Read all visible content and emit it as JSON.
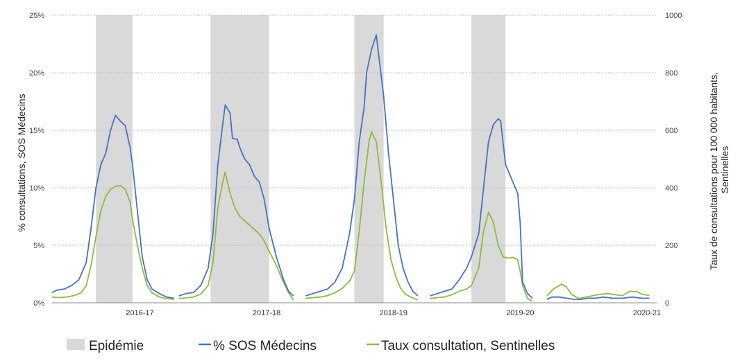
{
  "chart_data": {
    "type": "line",
    "ylabel_left": "% consultations, SOS Médecins",
    "ylabel_right": "Taux de consultations pour 100 000 habitants, Sentinelles",
    "y_left": {
      "ticks": [
        "0%",
        "5%",
        "10%",
        "15%",
        "20%",
        "25%"
      ],
      "range": [
        0,
        25
      ]
    },
    "y_right": {
      "ticks": [
        "0",
        "200",
        "400",
        "600",
        "800",
        "1000"
      ],
      "range": [
        0,
        1000
      ]
    },
    "x_range": [
      0,
      248
    ],
    "grid": true,
    "legend_position": "bottom",
    "seasons": [
      {
        "label": "2016-17",
        "x": 36
      },
      {
        "label": "2017-18",
        "x": 88
      },
      {
        "label": "2018-19",
        "x": 140
      },
      {
        "label": "2019-20",
        "x": 192
      },
      {
        "label": "2020-21",
        "x": 244
      }
    ],
    "epidemics": [
      [
        18,
        33
      ],
      [
        65,
        89
      ],
      [
        124,
        136
      ],
      [
        172,
        186
      ]
    ],
    "legend": {
      "epidemic": "Epidémie",
      "sos": "% SOS Médecins",
      "sentinelles": "Taux consultation, Sentinelles"
    },
    "colors": {
      "sos": "#4472c4",
      "sentinelles": "#8dbb3c",
      "epidemic": "#d9d9d9",
      "grid": "#bfbfbf"
    },
    "series": [
      {
        "name": "% SOS Médecins",
        "axis": "left",
        "segments": [
          [
            [
              0,
              0.9
            ],
            [
              2,
              1.1
            ],
            [
              5,
              1.2
            ],
            [
              8,
              1.5
            ],
            [
              11,
              2.0
            ],
            [
              14,
              3.5
            ],
            [
              16,
              6.5
            ],
            [
              18,
              10.0
            ],
            [
              20,
              12.0
            ],
            [
              22,
              13.0
            ],
            [
              24,
              15.0
            ],
            [
              26,
              16.3
            ],
            [
              28,
              15.8
            ],
            [
              30,
              15.4
            ],
            [
              32,
              13.5
            ],
            [
              33,
              12.0
            ],
            [
              35,
              8.0
            ],
            [
              37,
              4.0
            ],
            [
              39,
              2.0
            ],
            [
              41,
              1.2
            ],
            [
              44,
              0.8
            ],
            [
              47,
              0.5
            ],
            [
              50,
              0.4
            ]
          ],
          [
            [
              52,
              0.6
            ],
            [
              55,
              0.8
            ],
            [
              58,
              0.9
            ],
            [
              61,
              1.5
            ],
            [
              64,
              3.0
            ],
            [
              66,
              6.0
            ],
            [
              68,
              12.0
            ],
            [
              70,
              15.5
            ],
            [
              71,
              17.2
            ],
            [
              73,
              16.5
            ],
            [
              74,
              14.3
            ],
            [
              76,
              14.2
            ],
            [
              77,
              13.5
            ],
            [
              79,
              12.5
            ],
            [
              81,
              12.0
            ],
            [
              83,
              11.0
            ],
            [
              85,
              10.5
            ],
            [
              87,
              9.0
            ],
            [
              89,
              6.5
            ],
            [
              92,
              4.0
            ],
            [
              95,
              2.0
            ],
            [
              97,
              1.0
            ],
            [
              99,
              0.6
            ]
          ],
          [
            [
              104,
              0.6
            ],
            [
              107,
              0.8
            ],
            [
              110,
              1.0
            ],
            [
              113,
              1.2
            ],
            [
              116,
              1.8
            ],
            [
              119,
              3.0
            ],
            [
              122,
              6.0
            ],
            [
              124,
              9.0
            ],
            [
              126,
              14.0
            ],
            [
              128,
              17.0
            ],
            [
              129,
              20.0
            ],
            [
              131,
              22.0
            ],
            [
              133,
              23.3
            ],
            [
              134,
              21.5
            ],
            [
              136,
              18.0
            ],
            [
              138,
              13.0
            ],
            [
              140,
              9.0
            ],
            [
              142,
              5.0
            ],
            [
              144,
              3.0
            ],
            [
              146,
              1.8
            ],
            [
              148,
              1.0
            ],
            [
              150,
              0.6
            ]
          ],
          [
            [
              155,
              0.6
            ],
            [
              158,
              0.8
            ],
            [
              161,
              1.0
            ],
            [
              164,
              1.2
            ],
            [
              167,
              2.0
            ],
            [
              170,
              3.0
            ],
            [
              172,
              4.0
            ],
            [
              175,
              6.0
            ],
            [
              177,
              10.0
            ],
            [
              179,
              14.0
            ],
            [
              181,
              15.5
            ],
            [
              183,
              16.0
            ],
            [
              184,
              15.8
            ],
            [
              186,
              12.0
            ],
            [
              188,
              11.0
            ],
            [
              190,
              10.0
            ],
            [
              191,
              9.5
            ],
            [
              192,
              7.0
            ],
            [
              193,
              1.8
            ],
            [
              195,
              0.8
            ],
            [
              197,
              0.4
            ]
          ],
          [
            [
              203,
              0.3
            ],
            [
              205,
              0.5
            ],
            [
              208,
              0.5
            ],
            [
              211,
              0.4
            ],
            [
              214,
              0.3
            ],
            [
              217,
              0.3
            ],
            [
              220,
              0.4
            ],
            [
              223,
              0.4
            ],
            [
              226,
              0.5
            ],
            [
              230,
              0.4
            ],
            [
              234,
              0.4
            ],
            [
              238,
              0.5
            ],
            [
              242,
              0.4
            ],
            [
              245,
              0.4
            ]
          ]
        ]
      },
      {
        "name": "Taux consultation, Sentinelles",
        "axis": "right",
        "segments": [
          [
            [
              0,
              20
            ],
            [
              3,
              18
            ],
            [
              6,
              20
            ],
            [
              9,
              25
            ],
            [
              12,
              35
            ],
            [
              14,
              60
            ],
            [
              16,
              130
            ],
            [
              18,
              230
            ],
            [
              20,
              320
            ],
            [
              22,
              370
            ],
            [
              24,
              395
            ],
            [
              26,
              405
            ],
            [
              28,
              408
            ],
            [
              30,
              395
            ],
            [
              32,
              350
            ],
            [
              33,
              290
            ],
            [
              35,
              200
            ],
            [
              37,
              120
            ],
            [
              39,
              60
            ],
            [
              41,
              35
            ],
            [
              44,
              20
            ],
            [
              47,
              15
            ],
            [
              50,
              12
            ]
          ],
          [
            [
              52,
              15
            ],
            [
              55,
              17
            ],
            [
              58,
              20
            ],
            [
              61,
              30
            ],
            [
              64,
              60
            ],
            [
              66,
              140
            ],
            [
              68,
              330
            ],
            [
              70,
              420
            ],
            [
              71,
              455
            ],
            [
              73,
              380
            ],
            [
              75,
              330
            ],
            [
              77,
              300
            ],
            [
              79,
              285
            ],
            [
              81,
              270
            ],
            [
              83,
              255
            ],
            [
              85,
              240
            ],
            [
              87,
              215
            ],
            [
              89,
              180
            ],
            [
              92,
              130
            ],
            [
              95,
              70
            ],
            [
              97,
              35
            ],
            [
              99,
              10
            ]
          ],
          [
            [
              104,
              15
            ],
            [
              107,
              18
            ],
            [
              110,
              20
            ],
            [
              113,
              25
            ],
            [
              116,
              35
            ],
            [
              119,
              50
            ],
            [
              122,
              75
            ],
            [
              124,
              110
            ],
            [
              126,
              250
            ],
            [
              128,
              420
            ],
            [
              130,
              560
            ],
            [
              131,
              595
            ],
            [
              133,
              560
            ],
            [
              135,
              420
            ],
            [
              137,
              260
            ],
            [
              139,
              150
            ],
            [
              141,
              90
            ],
            [
              143,
              50
            ],
            [
              145,
              30
            ],
            [
              147,
              20
            ],
            [
              150,
              10
            ]
          ],
          [
            [
              155,
              15
            ],
            [
              158,
              18
            ],
            [
              161,
              20
            ],
            [
              164,
              28
            ],
            [
              167,
              40
            ],
            [
              170,
              48
            ],
            [
              172,
              60
            ],
            [
              175,
              120
            ],
            [
              177,
              250
            ],
            [
              179,
              315
            ],
            [
              181,
              280
            ],
            [
              183,
              200
            ],
            [
              185,
              160
            ],
            [
              187,
              155
            ],
            [
              189,
              158
            ],
            [
              191,
              150
            ],
            [
              192,
              110
            ],
            [
              193,
              60
            ],
            [
              195,
              15
            ],
            [
              197,
              5
            ]
          ],
          [
            [
              203,
              25
            ],
            [
              206,
              50
            ],
            [
              209,
              65
            ],
            [
              211,
              55
            ],
            [
              213,
              30
            ],
            [
              216,
              15
            ],
            [
              219,
              20
            ],
            [
              222,
              25
            ],
            [
              225,
              30
            ],
            [
              228,
              32
            ],
            [
              231,
              28
            ],
            [
              234,
              25
            ],
            [
              237,
              40
            ],
            [
              240,
              38
            ],
            [
              242,
              30
            ],
            [
              245,
              25
            ]
          ]
        ]
      }
    ]
  }
}
